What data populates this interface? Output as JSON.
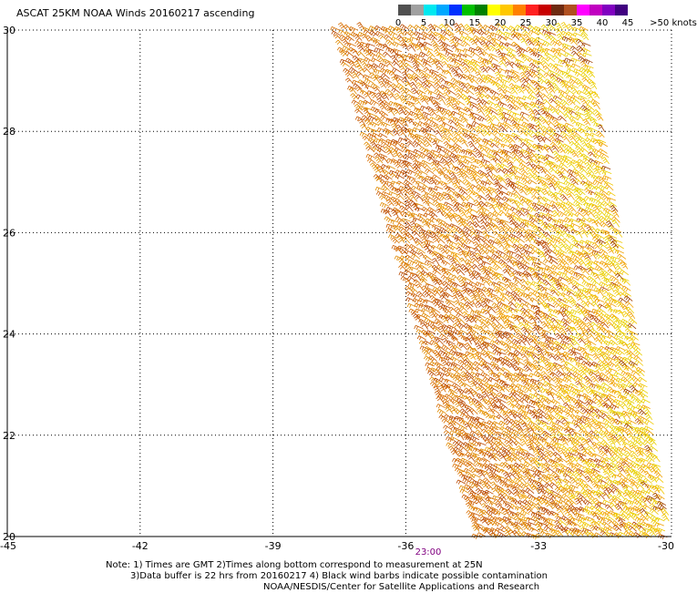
{
  "title": "ASCAT 25KM NOAA Winds 20160217 ascending",
  "legend": {
    "colors": [
      "#505050",
      "#a0a0a0",
      "#00e8f0",
      "#00a8ff",
      "#0030ff",
      "#00c000",
      "#008000",
      "#ffff00",
      "#ffc800",
      "#ff8000",
      "#ff2020",
      "#c80000",
      "#6e2a10",
      "#b05020",
      "#ff00ff",
      "#c000c0",
      "#8000c0",
      "#400080"
    ],
    "ticks": [
      "0",
      "5",
      "10",
      "15",
      "20",
      "25",
      "30",
      "35",
      "40",
      "45",
      ">50 knots"
    ],
    "tick_step_swatches": 2
  },
  "map": {
    "lon_labels": [
      "-45",
      "-42",
      "-39",
      "-36",
      "-33",
      "-30"
    ],
    "lat_labels": [
      "20",
      "22",
      "24",
      "26",
      "28",
      "30"
    ],
    "lon_range": [
      -45,
      -30
    ],
    "lat_range": [
      20,
      30
    ],
    "grid": true,
    "swath_time_label": "23:00",
    "swath_time_color": "#800080",
    "barb_colors": [
      "#c85a00",
      "#d86e00",
      "#e08a00",
      "#b84800",
      "#f0a000",
      "#f0c800",
      "#e8d000",
      "#a04000"
    ]
  },
  "notes": {
    "line1": "Note: 1) Times are GMT 2)Times along bottom correspond to measurement at 25N",
    "line2": "3)Data buffer is 22 hrs from 20160217 4) Black wind barbs indicate possible contamination",
    "line3": "NOAA/NESDIS/Center for Satellite Applications and Research"
  }
}
